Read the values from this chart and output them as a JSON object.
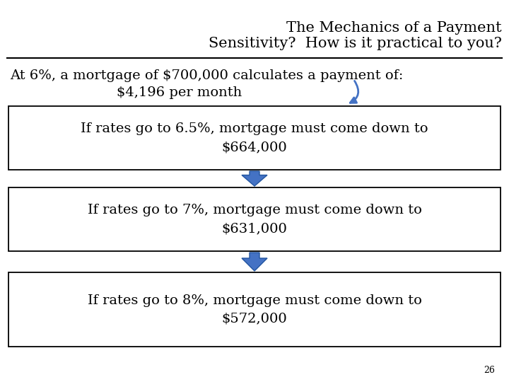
{
  "title_line1": "The Mechanics of a Payment",
  "title_line2": "Sensitivity?  How is it practical to you?",
  "intro_line1": "At 6%, a mortgage of $700,000 calculates a payment of:",
  "intro_line2": "$4,196 per month",
  "boxes": [
    [
      "If rates go to 6.5%, mortgage must come down to",
      "$664,000"
    ],
    [
      "If rates go to 7%, mortgage must come down to",
      "$631,000"
    ],
    [
      "If rates go to 8%, mortgage must come down to",
      "$572,000"
    ]
  ],
  "page_number": "26",
  "box_border_color": "#000000",
  "box_fill_color": "#ffffff",
  "arrow_color": "#4472C4",
  "title_fontsize": 15,
  "body_fontsize": 14,
  "intro_fontsize": 14,
  "bg_color": "#ffffff"
}
